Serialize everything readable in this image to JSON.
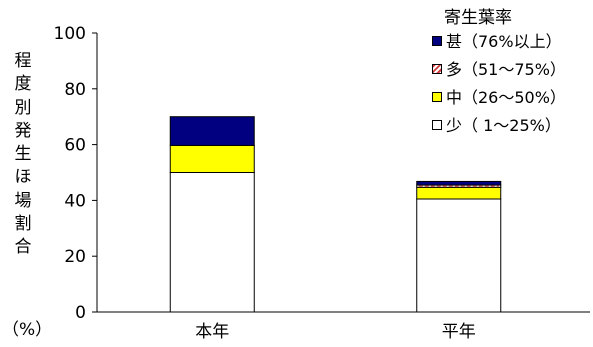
{
  "chart_data": {
    "type": "bar",
    "stacked": true,
    "categories": [
      "本年",
      "平年"
    ],
    "series": [
      {
        "name": "少（ 1～25%）",
        "values": [
          50,
          40.5
        ],
        "color": "#ffffff",
        "pattern": "solid"
      },
      {
        "name": "中（26～50%）",
        "values": [
          9.7,
          4.2
        ],
        "color": "#ffff00",
        "pattern": "solid"
      },
      {
        "name": "多（51～75%）",
        "values": [
          0,
          0.8
        ],
        "color": "#ffffff",
        "pattern": "dashed-red"
      },
      {
        "name": "甚（76%以上）",
        "values": [
          10.3,
          1.3
        ],
        "color": "#000080",
        "pattern": "solid"
      }
    ],
    "ylabel_chars": [
      "程",
      "度",
      "別",
      "発",
      "生",
      "ほ",
      "場",
      "割",
      "合"
    ],
    "ylabel_unit": "（%）",
    "ylim": [
      0,
      100
    ],
    "yticks": [
      0,
      20,
      40,
      60,
      80,
      100
    ],
    "grid": false,
    "legend": {
      "title": "寄生葉率",
      "position": "top-right"
    }
  }
}
